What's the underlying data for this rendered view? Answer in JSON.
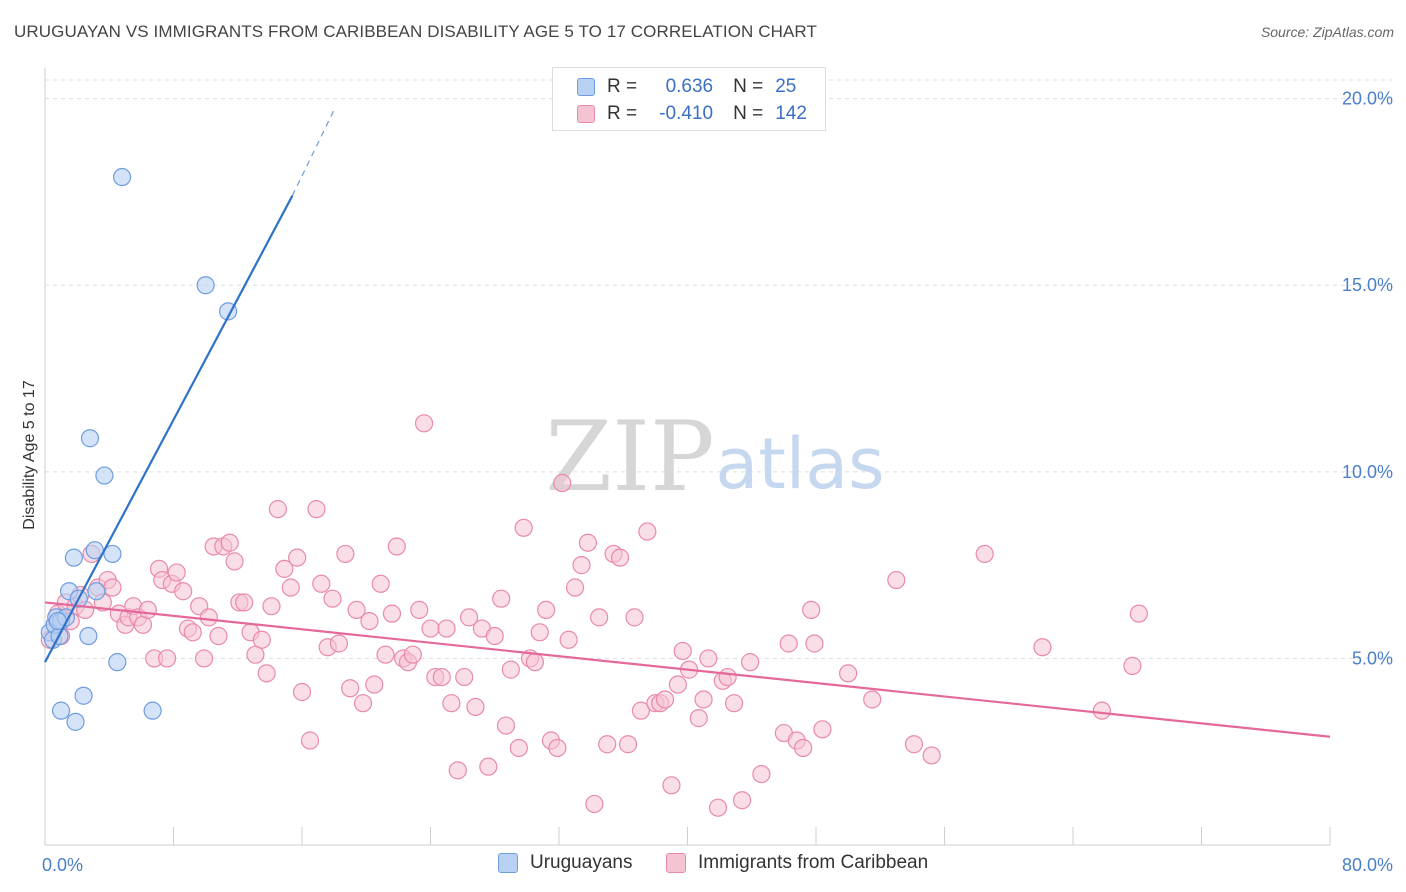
{
  "title": "URUGUAYAN VS IMMIGRANTS FROM CARIBBEAN DISABILITY AGE 5 TO 17 CORRELATION CHART",
  "source": "Source: ZipAtlas.com",
  "watermark": {
    "zip": "ZIP",
    "atlas": "atlas"
  },
  "legend": {
    "rows": [
      {
        "r_label": "R =",
        "r_value": "0.636",
        "n_label": "N =",
        "n_value": "25"
      },
      {
        "r_label": "R =",
        "r_value": "-0.410",
        "n_label": "N =",
        "n_value": "142"
      }
    ]
  },
  "bottom_legend": {
    "series1": "Uruguayans",
    "series2": "Immigrants from Caribbean"
  },
  "colors": {
    "blue_fill": "#b8d1f3",
    "blue_stroke": "#6f9ee0",
    "blue_line": "#2f72c9",
    "pink_fill": "#f6c3d3",
    "pink_stroke": "#e98aaa",
    "pink_line": "#e4699a",
    "tick_text": "#4a7fc9",
    "grid": "#dddddd"
  },
  "chart_data": {
    "type": "scatter",
    "title": "URUGUAYAN VS IMMIGRANTS FROM CARIBBEAN DISABILITY AGE 5 TO 17 CORRELATION CHART",
    "xlabel": "",
    "ylabel": "Disability Age 5 to 17",
    "xlim": [
      0,
      80
    ],
    "ylim": [
      0,
      20.5
    ],
    "x_tick_labels": [
      "0.0%",
      "80.0%"
    ],
    "y_ticks": [
      5,
      10,
      15,
      20
    ],
    "y_tick_labels": [
      "5.0%",
      "10.0%",
      "15.0%",
      "20.0%"
    ],
    "grid": true,
    "series": [
      {
        "name": "Uruguayans",
        "r": 0.636,
        "n": 25,
        "trend": {
          "x0": 0.0,
          "y0": 4.9,
          "x1": 15.4,
          "y1": 17.4,
          "dash_to_x": 18.0,
          "dash_to_y": 19.7
        },
        "points": [
          [
            0.3,
            5.7
          ],
          [
            0.5,
            5.5
          ],
          [
            0.6,
            5.9
          ],
          [
            0.7,
            6.1
          ],
          [
            0.9,
            5.6
          ],
          [
            1.0,
            6.0
          ],
          [
            1.3,
            6.1
          ],
          [
            1.5,
            6.8
          ],
          [
            1.8,
            7.7
          ],
          [
            2.1,
            6.6
          ],
          [
            2.7,
            5.6
          ],
          [
            2.8,
            10.9
          ],
          [
            3.2,
            6.8
          ],
          [
            3.7,
            9.9
          ],
          [
            4.2,
            7.8
          ],
          [
            4.5,
            4.9
          ],
          [
            1.0,
            3.6
          ],
          [
            1.9,
            3.3
          ],
          [
            2.4,
            4.0
          ],
          [
            6.7,
            3.6
          ],
          [
            3.1,
            7.9
          ],
          [
            4.8,
            17.9
          ],
          [
            10.0,
            15.0
          ],
          [
            11.4,
            14.3
          ],
          [
            0.8,
            6.0
          ]
        ]
      },
      {
        "name": "Immigrants from Caribbean",
        "r": -0.41,
        "n": 142,
        "trend": {
          "x0": 0.0,
          "y0": 6.5,
          "x1": 80.0,
          "y1": 2.9
        },
        "points": [
          [
            0.3,
            5.5
          ],
          [
            0.6,
            5.9
          ],
          [
            0.8,
            6.2
          ],
          [
            1.0,
            5.6
          ],
          [
            1.3,
            6.5
          ],
          [
            1.6,
            6.0
          ],
          [
            1.9,
            6.4
          ],
          [
            2.2,
            6.7
          ],
          [
            2.5,
            6.3
          ],
          [
            2.9,
            7.8
          ],
          [
            3.3,
            6.9
          ],
          [
            3.6,
            6.5
          ],
          [
            3.9,
            7.1
          ],
          [
            4.2,
            6.9
          ],
          [
            4.6,
            6.2
          ],
          [
            5.0,
            5.9
          ],
          [
            5.2,
            6.1
          ],
          [
            5.5,
            6.4
          ],
          [
            5.8,
            6.1
          ],
          [
            6.1,
            5.9
          ],
          [
            6.4,
            6.3
          ],
          [
            6.8,
            5.0
          ],
          [
            7.1,
            7.4
          ],
          [
            7.3,
            7.1
          ],
          [
            7.6,
            5.0
          ],
          [
            7.9,
            7.0
          ],
          [
            8.2,
            7.3
          ],
          [
            8.6,
            6.8
          ],
          [
            8.9,
            5.8
          ],
          [
            9.2,
            5.7
          ],
          [
            9.6,
            6.4
          ],
          [
            9.9,
            5.0
          ],
          [
            10.2,
            6.1
          ],
          [
            10.5,
            8.0
          ],
          [
            10.8,
            5.6
          ],
          [
            11.1,
            8.0
          ],
          [
            11.5,
            8.1
          ],
          [
            11.8,
            7.6
          ],
          [
            12.1,
            6.5
          ],
          [
            12.4,
            6.5
          ],
          [
            12.8,
            5.7
          ],
          [
            13.1,
            5.1
          ],
          [
            13.5,
            5.5
          ],
          [
            13.8,
            4.6
          ],
          [
            14.1,
            6.4
          ],
          [
            14.5,
            9.0
          ],
          [
            14.9,
            7.4
          ],
          [
            15.3,
            6.9
          ],
          [
            15.7,
            7.7
          ],
          [
            16.0,
            4.1
          ],
          [
            16.5,
            2.8
          ],
          [
            16.9,
            9.0
          ],
          [
            17.2,
            7.0
          ],
          [
            17.6,
            5.3
          ],
          [
            17.9,
            6.6
          ],
          [
            18.3,
            5.4
          ],
          [
            18.7,
            7.8
          ],
          [
            19.0,
            4.2
          ],
          [
            19.4,
            6.3
          ],
          [
            19.8,
            3.8
          ],
          [
            20.2,
            6.0
          ],
          [
            20.5,
            4.3
          ],
          [
            20.9,
            7.0
          ],
          [
            21.2,
            5.1
          ],
          [
            21.6,
            6.2
          ],
          [
            21.9,
            8.0
          ],
          [
            22.3,
            5.0
          ],
          [
            22.6,
            4.9
          ],
          [
            22.9,
            5.1
          ],
          [
            23.3,
            6.3
          ],
          [
            23.6,
            11.3
          ],
          [
            24.0,
            5.8
          ],
          [
            24.3,
            4.5
          ],
          [
            24.7,
            4.5
          ],
          [
            25.0,
            5.8
          ],
          [
            25.3,
            3.8
          ],
          [
            25.7,
            2.0
          ],
          [
            26.1,
            4.5
          ],
          [
            26.4,
            6.1
          ],
          [
            26.8,
            3.7
          ],
          [
            27.2,
            5.8
          ],
          [
            27.6,
            2.1
          ],
          [
            28.0,
            5.6
          ],
          [
            28.4,
            6.6
          ],
          [
            28.7,
            3.2
          ],
          [
            29.0,
            4.7
          ],
          [
            29.5,
            2.6
          ],
          [
            29.8,
            8.5
          ],
          [
            30.2,
            5.0
          ],
          [
            30.5,
            4.9
          ],
          [
            30.8,
            5.7
          ],
          [
            31.2,
            6.3
          ],
          [
            31.5,
            2.8
          ],
          [
            31.9,
            2.6
          ],
          [
            32.2,
            9.7
          ],
          [
            32.6,
            5.5
          ],
          [
            33.0,
            6.9
          ],
          [
            33.4,
            7.5
          ],
          [
            33.8,
            8.1
          ],
          [
            34.2,
            1.1
          ],
          [
            34.5,
            6.1
          ],
          [
            35.0,
            2.7
          ],
          [
            35.4,
            7.8
          ],
          [
            35.8,
            7.7
          ],
          [
            36.3,
            2.7
          ],
          [
            36.7,
            6.1
          ],
          [
            37.1,
            3.6
          ],
          [
            37.5,
            8.4
          ],
          [
            38.0,
            3.8
          ],
          [
            38.3,
            3.8
          ],
          [
            38.6,
            3.9
          ],
          [
            39.0,
            1.6
          ],
          [
            39.4,
            4.3
          ],
          [
            39.7,
            5.2
          ],
          [
            40.1,
            4.7
          ],
          [
            40.7,
            3.4
          ],
          [
            41.0,
            3.9
          ],
          [
            41.3,
            5.0
          ],
          [
            41.9,
            1.0
          ],
          [
            42.2,
            4.4
          ],
          [
            42.5,
            4.5
          ],
          [
            42.9,
            3.8
          ],
          [
            43.4,
            1.2
          ],
          [
            43.9,
            4.9
          ],
          [
            44.6,
            1.9
          ],
          [
            46.0,
            3.0
          ],
          [
            46.3,
            5.4
          ],
          [
            46.8,
            2.8
          ],
          [
            47.2,
            2.6
          ],
          [
            47.7,
            6.3
          ],
          [
            47.9,
            5.4
          ],
          [
            48.4,
            3.1
          ],
          [
            50.0,
            4.6
          ],
          [
            51.5,
            3.9
          ],
          [
            53.0,
            7.1
          ],
          [
            54.1,
            2.7
          ],
          [
            55.2,
            2.4
          ],
          [
            58.5,
            7.8
          ],
          [
            62.1,
            5.3
          ],
          [
            65.8,
            3.6
          ],
          [
            67.7,
            4.8
          ],
          [
            68.1,
            6.2
          ]
        ]
      }
    ]
  }
}
